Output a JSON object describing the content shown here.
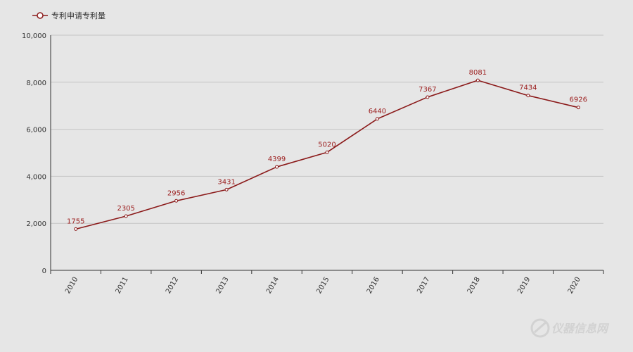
{
  "chart_data": {
    "type": "line",
    "title": "",
    "xlabel": "",
    "ylabel": "",
    "x": [
      "2010",
      "2011",
      "2012",
      "2013",
      "2014",
      "2015",
      "2016",
      "2017",
      "2018",
      "2019",
      "2020"
    ],
    "series": [
      {
        "name": "专利申请专利量",
        "values": [
          1755,
          2305,
          2956,
          3431,
          4399,
          5020,
          6440,
          7367,
          8081,
          7434,
          6926
        ]
      }
    ],
    "data_labels": [
      "1755",
      "2305",
      "2956",
      "3431",
      "4399",
      "5020",
      "6440",
      "7367",
      "8081",
      "7434",
      "6926"
    ],
    "ylim": [
      0,
      10000
    ],
    "yticks": [
      0,
      2000,
      4000,
      6000,
      8000,
      10000
    ],
    "ytick_labels": [
      "0",
      "2,000",
      "4,000",
      "6,000",
      "8,000",
      "10,000"
    ],
    "grid": true,
    "legend": "top-left"
  },
  "colors": {
    "series": "#8b1a1a",
    "label": "#9b1c1c",
    "axis": "#333333",
    "grid": "#c4c4c4"
  },
  "watermark": {
    "text": "仪器信息网",
    "icon": "instrument-logo-icon"
  }
}
